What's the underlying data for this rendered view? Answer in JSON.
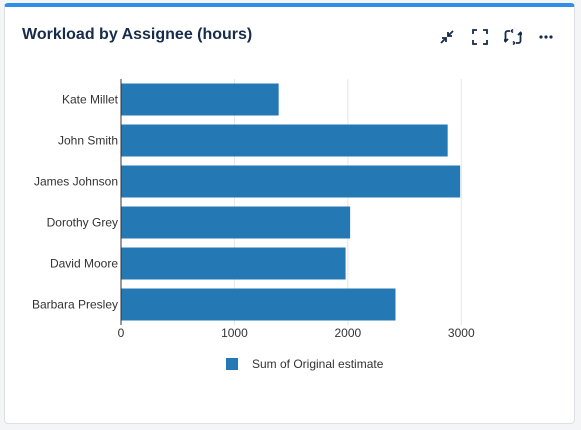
{
  "widget": {
    "title": "Workload by Assignee (hours)",
    "toolbar": {
      "collapse_icon": "collapse-icon",
      "fullscreen_icon": "fullscreen-icon",
      "refresh_icon": "refresh-icon",
      "more_icon": "more-icon"
    },
    "accent_color": "#2f8fe6"
  },
  "chart_data": {
    "type": "bar",
    "orientation": "horizontal",
    "categories": [
      "Kate Millet",
      "John Smith",
      "James Johnson",
      "Dorothy Grey",
      "David Moore",
      "Barbara Presley"
    ],
    "series": [
      {
        "name": "Sum of Original estimate",
        "values": [
          1390,
          2880,
          2990,
          2020,
          1980,
          2420
        ],
        "color": "#2478b4"
      }
    ],
    "xticks": [
      0,
      1000,
      2000,
      3000
    ],
    "xlim": [
      0,
      3500
    ],
    "grid": true,
    "legend_position": "bottom-center"
  }
}
